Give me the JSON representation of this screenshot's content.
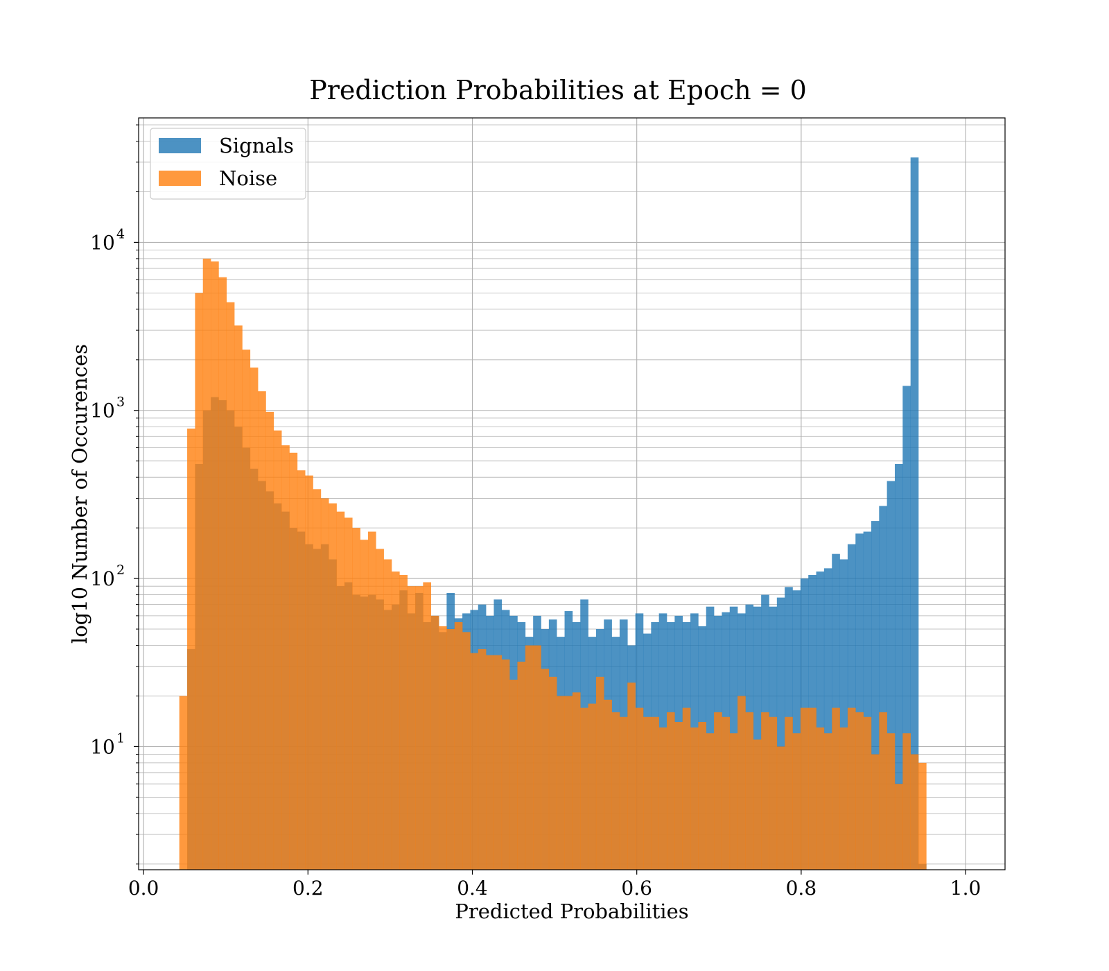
{
  "chart_data": {
    "type": "bar",
    "title": "Prediction Probabilities at Epoch = 0",
    "xlabel": "Predicted Probabilities",
    "ylabel": "log10 Number of Occurences",
    "xlim": [
      -0.006,
      1.048
    ],
    "ylim": [
      1.85,
      55000
    ],
    "yscale": "log",
    "grid": true,
    "grid_minor_y": true,
    "legend_position": "top-left",
    "x_ticks": [
      0.0,
      0.2,
      0.4,
      0.6,
      0.8,
      1.0
    ],
    "x_tick_labels": [
      "0.0",
      "0.2",
      "0.4",
      "0.6",
      "0.8",
      "1.0"
    ],
    "y_ticks": [
      10,
      100,
      1000,
      10000
    ],
    "y_tick_labels": [
      {
        "base": "10",
        "exp": "1"
      },
      {
        "base": "10",
        "exp": "2"
      },
      {
        "base": "10",
        "exp": "3"
      },
      {
        "base": "10",
        "exp": "4"
      }
    ],
    "series": [
      {
        "name": "Signals",
        "color": "#1f77b4",
        "alpha": 0.8,
        "bin_start": 0.0435,
        "bin_width": 0.009565,
        "values": [
          1,
          38,
          480,
          1000,
          1200,
          1150,
          1000,
          800,
          600,
          450,
          380,
          330,
          280,
          250,
          200,
          190,
          160,
          150,
          160,
          130,
          90,
          95,
          80,
          78,
          80,
          75,
          65,
          70,
          85,
          62,
          82,
          55,
          60,
          48,
          82,
          58,
          62,
          65,
          70,
          60,
          75,
          65,
          60,
          55,
          45,
          60,
          50,
          57,
          45,
          64,
          55,
          75,
          45,
          50,
          57,
          45,
          57,
          40,
          62,
          47,
          55,
          62,
          55,
          60,
          55,
          62,
          52,
          68,
          60,
          63,
          68,
          62,
          70,
          68,
          80,
          68,
          77,
          89,
          85,
          100,
          105,
          110,
          115,
          140,
          130,
          160,
          185,
          190,
          220,
          270,
          380,
          480,
          1400,
          32000,
          2
        ]
      },
      {
        "name": "Noise",
        "color": "#ff7f0e",
        "alpha": 0.8,
        "bin_start": 0.0435,
        "bin_width": 0.009565,
        "values": [
          20,
          780,
          5000,
          8000,
          7700,
          6200,
          4400,
          3200,
          2300,
          1800,
          1300,
          980,
          760,
          620,
          560,
          440,
          410,
          340,
          300,
          280,
          250,
          230,
          200,
          170,
          190,
          150,
          130,
          110,
          105,
          90,
          90,
          95,
          60,
          52,
          50,
          55,
          48,
          36,
          38,
          35,
          35,
          33,
          25,
          32,
          40,
          40,
          29,
          26,
          20,
          20,
          21,
          17,
          18,
          26,
          19,
          16,
          15,
          24,
          17,
          15,
          15,
          13,
          16,
          14,
          17,
          13,
          14,
          12,
          16,
          15,
          12,
          20,
          16,
          11,
          16,
          15,
          10,
          15,
          12,
          17,
          17,
          13,
          12,
          17,
          13,
          17,
          16,
          15,
          9,
          16,
          12,
          6,
          12,
          9,
          8,
          0
        ]
      }
    ]
  }
}
